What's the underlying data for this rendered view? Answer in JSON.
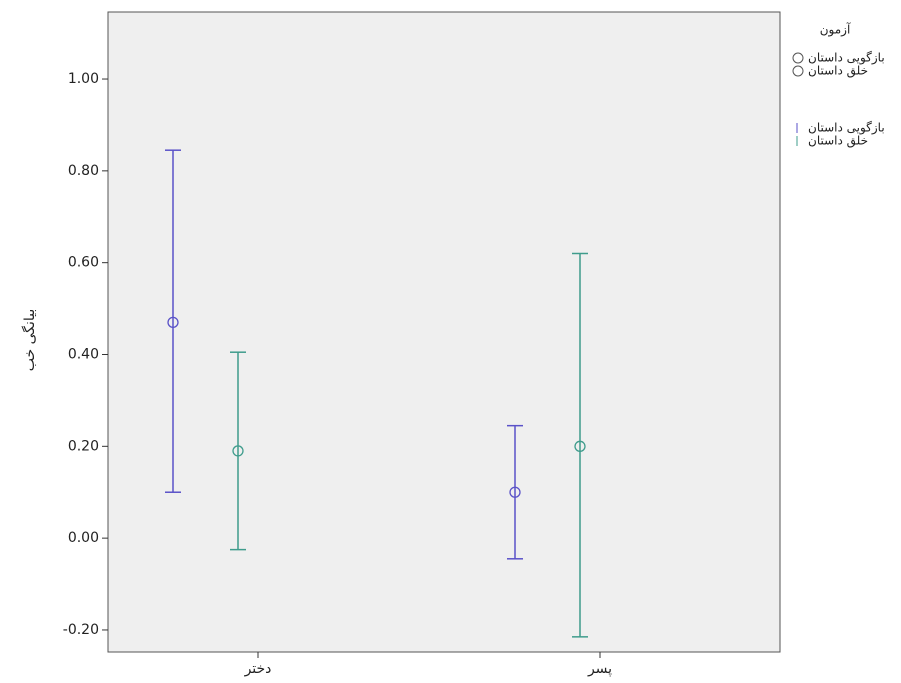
{
  "chart_data": {
    "type": "errorbar",
    "y_label": "بیانگی خب",
    "categories": [
      "دختر",
      "پسر"
    ],
    "legend_title": "آزمون",
    "series": [
      {
        "name": "بازگویی داستان",
        "color": "#5a52c8",
        "values": [
          0.47,
          0.1
        ],
        "lower": [
          0.1,
          -0.045
        ],
        "upper": [
          0.845,
          0.245
        ]
      },
      {
        "name": "خلق داستان",
        "color": "#3f9c8c",
        "values": [
          0.19,
          0.2
        ],
        "lower": [
          -0.025,
          -0.215
        ],
        "upper": [
          0.405,
          0.62
        ]
      }
    ],
    "ylim": [
      -0.248,
      1.146
    ],
    "yticks": [
      {
        "value": 1,
        "label": "1.00"
      },
      {
        "value": 0.8,
        "label": "0.80"
      },
      {
        "value": 0.6,
        "label": "0.60"
      },
      {
        "value": 0.4,
        "label": "0.40"
      },
      {
        "value": 0.2,
        "label": "0.20"
      },
      {
        "value": 0,
        "label": "0.00"
      },
      {
        "value": -0.2,
        "label": "-0.20"
      }
    ]
  }
}
